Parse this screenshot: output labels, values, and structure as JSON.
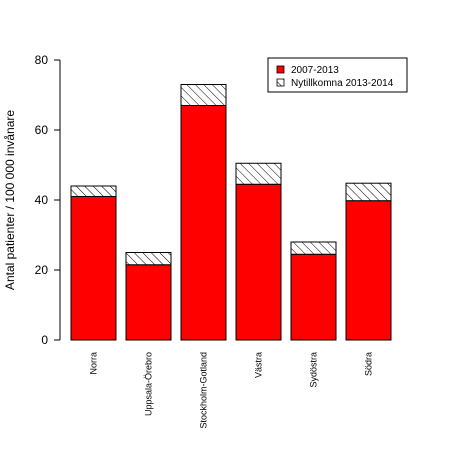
{
  "chart_data": {
    "type": "bar",
    "stacked": true,
    "ylabel": "Antal patienter / 100 000 invånare",
    "xlabel": "",
    "ylim": [
      0,
      80
    ],
    "yticks": [
      0,
      20,
      40,
      60,
      80
    ],
    "grid": false,
    "legend_position": "top-right",
    "categories": [
      "Norra",
      "Uppsala-Örebro",
      "Stockholm-Gotland",
      "Västra",
      "Sydöstra",
      "Södra"
    ],
    "series": [
      {
        "name": "2007-2013",
        "values": [
          41,
          21.5,
          67,
          44.5,
          24.5,
          39.8
        ],
        "color": "#ff0000",
        "pattern": "solid"
      },
      {
        "name": "Nytillkomna 2013-2014",
        "values": [
          3,
          3.5,
          6,
          6,
          3.5,
          5
        ],
        "color": "#ffffff",
        "pattern": "hatched"
      }
    ]
  }
}
